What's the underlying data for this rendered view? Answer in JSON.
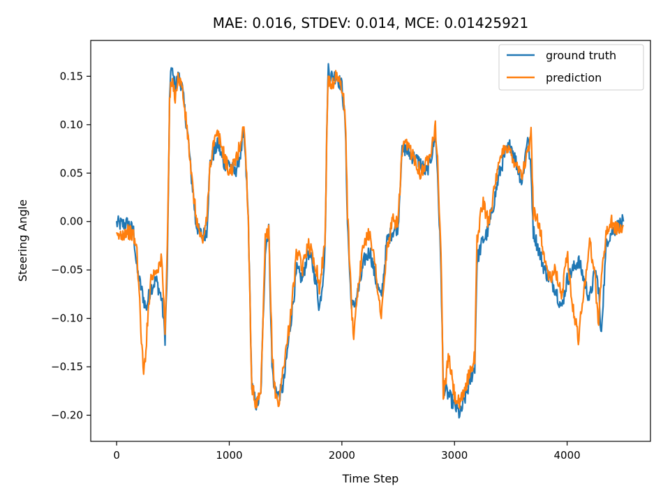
{
  "chart_data": {
    "type": "line",
    "title": "MAE: 0.016, STDEV: 0.014, MCE: 0.01425921",
    "xlabel": "Time Step",
    "ylabel": "Steering Angle",
    "xlim": [
      -230,
      4740
    ],
    "ylim": [
      -0.227,
      0.187
    ],
    "xticks": [
      0,
      1000,
      2000,
      3000,
      4000
    ],
    "xtick_labels": [
      "0",
      "1000",
      "2000",
      "3000",
      "4000"
    ],
    "yticks": [
      0.15,
      0.1,
      0.05,
      0.0,
      -0.05,
      -0.1,
      -0.15,
      -0.2
    ],
    "ytick_labels": [
      "0.15",
      "0.10",
      "0.05",
      "0.00",
      "−0.05",
      "−0.10",
      "−0.15",
      "−0.20"
    ],
    "grid": false,
    "legend_position": "top-right",
    "series": [
      {
        "name": "ground truth",
        "color": "#1f77b4",
        "x": [
          0,
          50,
          100,
          150,
          180,
          220,
          260,
          300,
          350,
          400,
          430,
          450,
          470,
          480,
          500,
          520,
          550,
          580,
          600,
          620,
          640,
          660,
          680,
          700,
          730,
          760,
          800,
          830,
          860,
          900,
          950,
          1000,
          1050,
          1100,
          1130,
          1150,
          1170,
          1200,
          1240,
          1280,
          1320,
          1350,
          1380,
          1400,
          1440,
          1480,
          1520,
          1560,
          1600,
          1650,
          1700,
          1750,
          1780,
          1800,
          1830,
          1850,
          1870,
          1880,
          1900,
          1950,
          2000,
          2030,
          2050,
          2080,
          2100,
          2150,
          2200,
          2250,
          2300,
          2350,
          2400,
          2450,
          2500,
          2530,
          2560,
          2600,
          2650,
          2700,
          2750,
          2800,
          2830,
          2850,
          2880,
          2900,
          2950,
          3000,
          3050,
          3100,
          3150,
          3180,
          3200,
          3250,
          3300,
          3350,
          3400,
          3450,
          3500,
          3550,
          3600,
          3650,
          3680,
          3700,
          3750,
          3800,
          3850,
          3900,
          3950,
          4000,
          4050,
          4100,
          4150,
          4200,
          4250,
          4280,
          4300,
          4350,
          4400,
          4450,
          4500
        ],
        "y": [
          -0.002,
          -0.003,
          -0.002,
          -0.01,
          -0.05,
          -0.07,
          -0.09,
          -0.07,
          -0.06,
          -0.08,
          -0.12,
          -0.05,
          0.12,
          0.16,
          0.15,
          0.14,
          0.15,
          0.14,
          0.12,
          0.1,
          0.08,
          0.05,
          0.03,
          0.0,
          -0.01,
          -0.015,
          -0.01,
          0.06,
          0.07,
          0.08,
          0.06,
          0.06,
          0.05,
          0.07,
          0.09,
          0.05,
          0.0,
          -0.17,
          -0.19,
          -0.18,
          -0.03,
          -0.005,
          -0.15,
          -0.17,
          -0.18,
          -0.17,
          -0.13,
          -0.09,
          -0.05,
          -0.06,
          -0.03,
          -0.05,
          -0.07,
          -0.09,
          -0.06,
          -0.03,
          0.12,
          0.16,
          0.15,
          0.15,
          0.14,
          0.1,
          0.0,
          -0.08,
          -0.09,
          -0.07,
          -0.04,
          -0.03,
          -0.06,
          -0.08,
          -0.02,
          -0.01,
          -0.005,
          0.07,
          0.075,
          0.07,
          0.065,
          0.06,
          0.05,
          0.07,
          0.09,
          0.05,
          -0.05,
          -0.17,
          -0.18,
          -0.19,
          -0.2,
          -0.18,
          -0.16,
          -0.15,
          -0.04,
          -0.02,
          -0.01,
          0.02,
          0.05,
          0.07,
          0.08,
          0.06,
          0.04,
          0.09,
          0.05,
          -0.01,
          -0.03,
          -0.05,
          -0.06,
          -0.07,
          -0.09,
          -0.06,
          -0.05,
          -0.04,
          -0.06,
          -0.08,
          -0.05,
          -0.07,
          -0.12,
          -0.02,
          -0.01,
          -0.005,
          0.0
        ]
      },
      {
        "name": "prediction",
        "color": "#ff7f0e",
        "x": [
          0,
          50,
          100,
          150,
          180,
          220,
          240,
          260,
          300,
          350,
          400,
          430,
          450,
          470,
          480,
          500,
          520,
          550,
          580,
          600,
          620,
          640,
          660,
          680,
          700,
          730,
          760,
          800,
          830,
          860,
          900,
          950,
          1000,
          1050,
          1100,
          1130,
          1150,
          1170,
          1200,
          1240,
          1280,
          1320,
          1350,
          1380,
          1400,
          1440,
          1480,
          1520,
          1560,
          1600,
          1650,
          1700,
          1750,
          1780,
          1800,
          1830,
          1850,
          1870,
          1880,
          1900,
          1950,
          2000,
          2030,
          2050,
          2080,
          2100,
          2150,
          2200,
          2250,
          2300,
          2350,
          2400,
          2450,
          2500,
          2530,
          2560,
          2600,
          2650,
          2700,
          2750,
          2800,
          2830,
          2850,
          2880,
          2900,
          2950,
          3000,
          3050,
          3100,
          3150,
          3180,
          3200,
          3250,
          3300,
          3350,
          3400,
          3450,
          3500,
          3550,
          3600,
          3650,
          3680,
          3700,
          3750,
          3800,
          3850,
          3900,
          3950,
          4000,
          4050,
          4100,
          4150,
          4200,
          4250,
          4280,
          4300,
          4350,
          4400,
          4450,
          4500
        ],
        "y": [
          -0.018,
          -0.012,
          -0.01,
          -0.015,
          -0.03,
          -0.12,
          -0.16,
          -0.13,
          -0.06,
          -0.05,
          -0.04,
          -0.11,
          -0.03,
          0.12,
          0.14,
          0.14,
          0.13,
          0.15,
          0.14,
          0.12,
          0.1,
          0.08,
          0.05,
          0.03,
          0.01,
          -0.01,
          -0.02,
          0.0,
          0.06,
          0.08,
          0.09,
          0.07,
          0.05,
          0.06,
          0.08,
          0.1,
          0.06,
          0.0,
          -0.17,
          -0.19,
          -0.18,
          -0.02,
          -0.01,
          -0.13,
          -0.17,
          -0.19,
          -0.15,
          -0.12,
          -0.08,
          -0.03,
          -0.05,
          -0.02,
          -0.04,
          -0.05,
          -0.07,
          -0.04,
          -0.02,
          0.11,
          0.15,
          0.14,
          0.15,
          0.14,
          0.11,
          0.01,
          -0.07,
          -0.12,
          -0.06,
          -0.02,
          -0.01,
          -0.05,
          -0.1,
          -0.03,
          0.0,
          0.0,
          0.065,
          0.08,
          0.075,
          0.065,
          0.05,
          0.06,
          0.08,
          0.1,
          0.06,
          -0.03,
          -0.18,
          -0.14,
          -0.18,
          -0.19,
          -0.17,
          -0.15,
          -0.14,
          -0.02,
          0.02,
          0.0,
          0.03,
          0.06,
          0.08,
          0.07,
          0.06,
          0.05,
          0.07,
          0.09,
          0.01,
          0.0,
          -0.04,
          -0.06,
          -0.05,
          -0.08,
          -0.03,
          -0.09,
          -0.12,
          -0.07,
          -0.02,
          -0.06,
          -0.11,
          -0.06,
          -0.01,
          0.0,
          -0.01,
          -0.005
        ]
      }
    ]
  }
}
